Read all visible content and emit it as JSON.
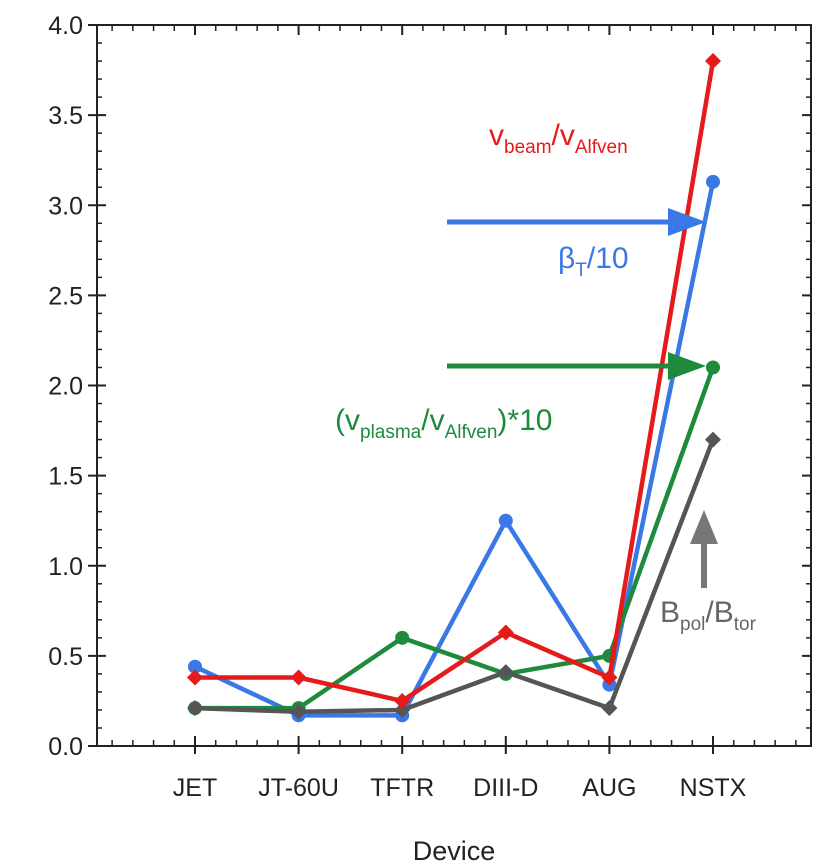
{
  "chart_data": {
    "type": "line",
    "title": "",
    "xlabel": "Device",
    "ylabel": "",
    "categories": [
      "JET",
      "JT-60U",
      "TFTR",
      "DIII-D",
      "AUG",
      "NSTX"
    ],
    "ylim": [
      0.0,
      4.0
    ],
    "yticks": [
      "0.0",
      "0.5",
      "1.0",
      "1.5",
      "2.0",
      "2.5",
      "3.0",
      "3.5",
      "4.0"
    ],
    "grid": false,
    "series": [
      {
        "key": "beta",
        "color": "#3a78e6",
        "marker": "circle",
        "values": [
          0.44,
          0.17,
          0.17,
          1.25,
          0.34,
          3.13
        ]
      },
      {
        "key": "vplasma",
        "color": "#1e8a3c",
        "marker": "circle",
        "values": [
          0.21,
          0.21,
          0.6,
          0.4,
          0.5,
          2.1
        ]
      },
      {
        "key": "bratio",
        "color": "#555555",
        "marker": "diamond",
        "values": [
          0.21,
          0.19,
          0.2,
          0.41,
          0.21,
          1.7
        ]
      },
      {
        "key": "vbeam",
        "color": "#e51a1a",
        "marker": "diamond",
        "values": [
          0.38,
          0.38,
          0.25,
          0.63,
          0.38,
          3.8
        ]
      }
    ],
    "annotations": {
      "vbeam": {
        "color": "#e51a1a",
        "v1": "v",
        "sub1": "beam",
        "sep": "/",
        "v2": "v",
        "sub2": "Alfven",
        "suffix": ""
      },
      "beta": {
        "color": "#3a78e6",
        "v1": "β",
        "sub1": "T",
        "sep": "/10",
        "v2": "",
        "sub2": "",
        "suffix": ""
      },
      "vplasma": {
        "color": "#1e8a3c",
        "prefix": "(",
        "v1": "v",
        "sub1": "plasma",
        "sep": "/",
        "v2": "v",
        "sub2": "Alfven",
        "suffix": ")*10"
      },
      "bratio": {
        "color": "#666666",
        "v1": "B",
        "sub1": "pol",
        "sep": "/",
        "v2": "B",
        "sub2": "tor",
        "suffix": ""
      }
    },
    "arrows": [
      {
        "color": "#3a78e6",
        "direction": "right",
        "target": "beta"
      },
      {
        "color": "#1e8a3c",
        "direction": "right",
        "target": "vplasma"
      },
      {
        "color": "#777777",
        "direction": "up",
        "target": "bratio"
      }
    ]
  }
}
